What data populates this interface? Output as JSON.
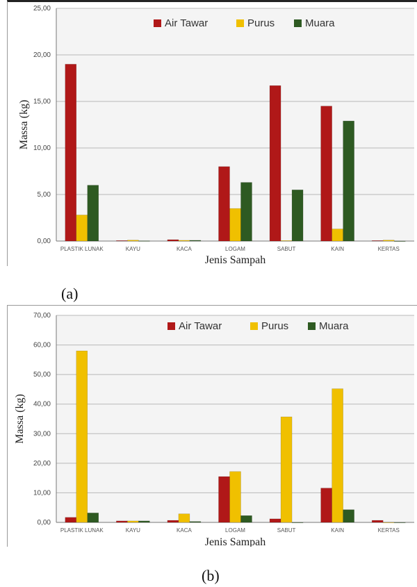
{
  "figure": {
    "caption_a": "(a)",
    "caption_b": "(b)"
  },
  "colors": {
    "air_tawar": "#b01818",
    "purus": "#f0c000",
    "muara": "#2e5a22",
    "plot_bg": "#f4f4f4",
    "grid": "#b8b8b8"
  },
  "chart_data": [
    {
      "type": "bar",
      "categories": [
        "PLASTIK LUNAK",
        "KAYU",
        "KACA",
        "LOGAM",
        "SABUT",
        "KAIN",
        "KERTAS"
      ],
      "series": [
        {
          "name": "Air Tawar",
          "values": [
            19.0,
            0.05,
            0.15,
            8.0,
            16.7,
            14.5,
            0.05
          ]
        },
        {
          "name": "Purus",
          "values": [
            2.8,
            0.1,
            0.08,
            3.5,
            0.05,
            1.3,
            0.1
          ]
        },
        {
          "name": "Muara",
          "values": [
            6.0,
            0.02,
            0.08,
            6.3,
            5.5,
            12.9,
            0.0
          ]
        }
      ],
      "title": "",
      "xlabel": "Jenis Sampah",
      "ylabel": "Massa (kg)",
      "ylim": [
        0,
        25
      ],
      "yticks": [
        "0,00",
        "5,00",
        "10,00",
        "15,00",
        "20,00",
        "25,00"
      ],
      "legend": "top"
    },
    {
      "type": "bar",
      "categories": [
        "PLASTIK LUNAK",
        "KAYU",
        "KACA",
        "LOGAM",
        "SABUT",
        "KAIN",
        "KERTAS"
      ],
      "series": [
        {
          "name": "Air Tawar",
          "values": [
            1.7,
            0.5,
            0.7,
            15.5,
            1.2,
            11.6,
            0.7
          ]
        },
        {
          "name": "Purus",
          "values": [
            58.0,
            0.5,
            2.9,
            17.2,
            35.7,
            45.2,
            0.0
          ]
        },
        {
          "name": "Muara",
          "values": [
            3.2,
            0.5,
            0.3,
            2.3,
            0.0,
            4.3,
            0.0
          ]
        }
      ],
      "title": "",
      "xlabel": "Jenis Sampah",
      "ylabel": "Massa (kg)",
      "ylim": [
        0,
        70
      ],
      "yticks": [
        "0,00",
        "10,00",
        "20,00",
        "30,00",
        "40,00",
        "50,00",
        "60,00",
        "70,00"
      ],
      "legend": "top"
    }
  ]
}
